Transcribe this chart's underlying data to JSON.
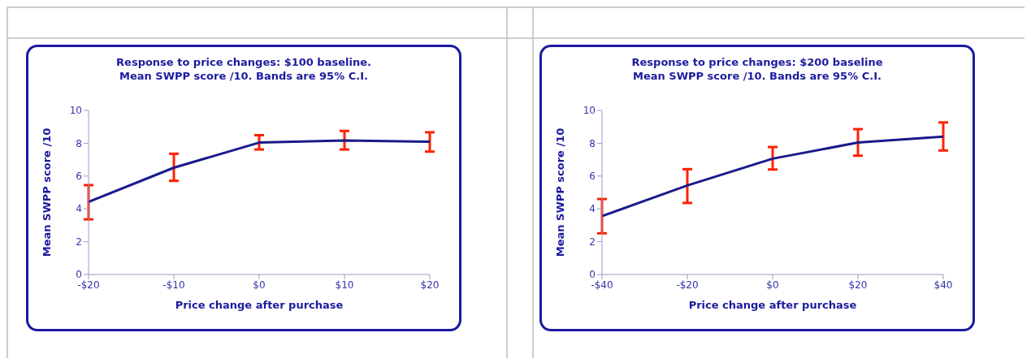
{
  "chart_data": [
    {
      "type": "line",
      "title": "Response to price changes: $100 baseline.\nMean SWPP score /10.  Bands are 95% C.I.",
      "xlabel": "Price change after purchase",
      "ylabel": "Mean SWPP score /10",
      "x": [
        -20,
        -10,
        0,
        10,
        20
      ],
      "series": [
        {
          "color": "#1a1a8c",
          "values": [
            4.42,
            6.51,
            8.04,
            8.17,
            8.09
          ],
          "errors": [
            [
              3.36,
              5.45
            ],
            [
              5.71,
              7.36
            ],
            [
              7.62,
              8.49
            ],
            [
              7.62,
              8.75
            ],
            [
              7.49,
              8.67
            ]
          ]
        }
      ],
      "xlim": [
        -20,
        20
      ],
      "xticks": [
        {
          "value": -20,
          "label": "-$20"
        },
        {
          "value": -10,
          "label": "-$10"
        },
        {
          "value": 0,
          "label": "$0"
        },
        {
          "value": 10,
          "label": "$10"
        },
        {
          "value": 20,
          "label": "$20"
        }
      ],
      "ylim": [
        0,
        10
      ],
      "yticks": [
        0,
        2,
        4,
        6,
        8,
        10
      ],
      "grid": false,
      "legend": false,
      "marker": "none",
      "line_style": "solid"
    },
    {
      "type": "line",
      "title": "Response to price changes: $200 baseline\nMean SWPP score /10.  Bands are 95% C.I.",
      "xlabel": "Price change after purchase",
      "ylabel": "Mean SWPP score /10",
      "x": [
        -40,
        -20,
        0,
        20,
        40
      ],
      "series": [
        {
          "color": "#1a1a8c",
          "values": [
            3.56,
            5.43,
            7.06,
            8.04,
            8.4
          ],
          "errors": [
            [
              2.51,
              4.6
            ],
            [
              4.36,
              6.42
            ],
            [
              6.4,
              7.77
            ],
            [
              7.24,
              8.86
            ],
            [
              7.56,
              9.27
            ]
          ]
        }
      ],
      "xlim": [
        -40,
        40
      ],
      "xticks": [
        {
          "value": -40,
          "label": "-$40"
        },
        {
          "value": -20,
          "label": "-$20"
        },
        {
          "value": 0,
          "label": "$0"
        },
        {
          "value": 20,
          "label": "$20"
        },
        {
          "value": 40,
          "label": "$40"
        }
      ],
      "ylim": [
        0,
        10
      ],
      "yticks": [
        0,
        2,
        4,
        6,
        8,
        10
      ],
      "grid": false,
      "legend": false,
      "marker": "none",
      "line_style": "solid"
    }
  ]
}
